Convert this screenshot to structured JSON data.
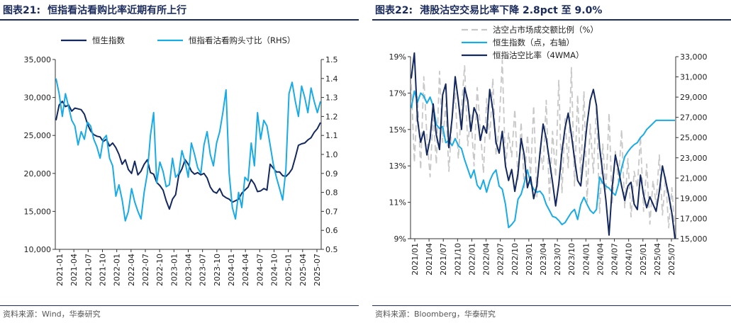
{
  "left": {
    "title_num": "图表21:",
    "title_text": "恒指看沽看购比率近期有所上行",
    "source": "资料来源：Wind，华泰研究"
  },
  "right": {
    "title_num": "图表22:",
    "title_text": "港股沽空交易比率下降 2.8pct 至 9.0%",
    "source": "资料来源：Bloomberg，华泰研究"
  },
  "colors": {
    "navy": "#13285e",
    "cyan": "#19abe6",
    "gray": "#c8c8c8"
  },
  "chart_data": [
    {
      "type": "line",
      "x_ticks": [
        "2021-01",
        "2021-04",
        "2021-07",
        "2021-10",
        "2022-01",
        "2022-04",
        "2022-07",
        "2022-10",
        "2023-01",
        "2023-04",
        "2023-07",
        "2023-10",
        "2024-01",
        "2024-04",
        "2024-07",
        "2024-10",
        "2025-01",
        "2025-04",
        "2025-07"
      ],
      "y_left": {
        "range": [
          10000,
          35000
        ],
        "ticks": [
          "10,000",
          "15,000",
          "20,000",
          "25,000",
          "30,000",
          "35,000"
        ]
      },
      "y_right": {
        "range": [
          0.5,
          1.5
        ],
        "ticks": [
          "0.5",
          "0.6",
          "0.7",
          "0.8",
          "0.9",
          "1.0",
          "1.1",
          "1.2",
          "1.3",
          "1.4",
          "1.5"
        ]
      },
      "series": [
        {
          "name": "恒生指数",
          "axis": "left",
          "color": "#13285e",
          "values": [
            27000,
            29000,
            29500,
            28800,
            29000,
            28200,
            28600,
            28500,
            28400,
            27800,
            26500,
            25600,
            25100,
            24900,
            24800,
            24200,
            24500,
            23600,
            24000,
            23400,
            22500,
            21200,
            21800,
            20500,
            20000,
            21600,
            19800,
            20300,
            21200,
            21800,
            20100,
            19900,
            18800,
            18400,
            17800,
            16400,
            15300,
            16600,
            17200,
            19800,
            20600,
            21800,
            21200,
            20300,
            19900,
            20100,
            19800,
            20000,
            19400,
            18200,
            17600,
            17400,
            18000,
            17100,
            16800,
            16600,
            16200,
            16400,
            16600,
            17400,
            17800,
            18200,
            19200,
            18600,
            17600,
            17700,
            18000,
            17800,
            21200,
            20700,
            20200,
            20200,
            19700,
            19600,
            20000,
            20600,
            22100,
            23700,
            23900,
            24000,
            24400,
            24700,
            25400,
            25900,
            26700
          ]
        },
        {
          "name": "恒指看沽看购头寸比（RHS）",
          "axis": "right",
          "color": "#19abe6",
          "values": [
            1.4,
            1.32,
            1.2,
            1.32,
            1.25,
            1.18,
            1.15,
            1.05,
            1.12,
            1.08,
            1.17,
            1.15,
            1.08,
            1.04,
            0.98,
            1.08,
            1.1,
            0.98,
            0.94,
            0.78,
            0.84,
            0.76,
            0.65,
            0.7,
            0.82,
            0.75,
            0.7,
            0.66,
            0.8,
            0.9,
            1.1,
            1.22,
            0.85,
            0.96,
            0.91,
            0.83,
            0.84,
            0.98,
            0.88,
            0.9,
            1.02,
            0.96,
            0.88,
            1.06,
            1.0,
            0.93,
            0.9,
            1.05,
            1.12,
            1.0,
            0.94,
            1.06,
            1.12,
            1.22,
            1.34,
            0.9,
            0.72,
            0.66,
            0.8,
            0.72,
            0.88,
            0.86,
            1.06,
            0.94,
            1.22,
            1.08,
            1.18,
            1.15,
            1.05,
            0.95,
            0.88,
            0.82,
            0.76,
            0.92,
            1.32,
            1.38,
            1.28,
            1.2,
            1.36,
            1.3,
            1.22,
            1.35,
            1.28,
            1.22,
            1.28
          ]
        }
      ]
    },
    {
      "type": "line",
      "x_ticks": [
        "2021/01",
        "2021/04",
        "2021/07",
        "2021/10",
        "2022/01",
        "2022/04",
        "2022/07",
        "2022/10",
        "2023/01",
        "2023/04",
        "2023/07",
        "2023/10",
        "2024/01",
        "2024/04",
        "2024/07",
        "2024/10",
        "2025/01",
        "2025/04",
        "2025/07"
      ],
      "y_left": {
        "range": [
          9,
          19
        ],
        "ticks": [
          "9%",
          "11%",
          "13%",
          "15%",
          "17%",
          "19%"
        ]
      },
      "y_right": {
        "range": [
          15000,
          33000
        ],
        "ticks": [
          "15,000",
          "17,000",
          "19,000",
          "21,000",
          "23,000",
          "25,000",
          "27,000",
          "29,000",
          "31,000",
          "33,000"
        ]
      },
      "series": [
        {
          "name": "沽空占市场成交额比例（%）",
          "axis": "left",
          "color": "#c8c8c8",
          "dash": true,
          "values": [
            17.5,
            13.2,
            16.8,
            12.8,
            17.9,
            14.6,
            12.4,
            15.9,
            13.1,
            18.2,
            14.3,
            16.4,
            12.7,
            15.6,
            17.0,
            13.4,
            16.2,
            18.5,
            14.1,
            15.8,
            13.0,
            17.3,
            15.1,
            12.6,
            16.7,
            14.4,
            17.8,
            13.6,
            15.2,
            18.8,
            12.9,
            14.8,
            13.5,
            16.1,
            12.2,
            15.4,
            11.8,
            14.7,
            12.5,
            16.3,
            11.3,
            14.0,
            12.8,
            16.6,
            11.1,
            14.9,
            12.4,
            17.7,
            11.5,
            15.6,
            12.9,
            18.4,
            11.9,
            16.9,
            12.3,
            17.1,
            11.0,
            15.3,
            12.6,
            16.4,
            10.4,
            14.2,
            11.6,
            15.9,
            10.9,
            13.8,
            12.1,
            15.0,
            10.7,
            13.4,
            10.2,
            12.7,
            11.8,
            14.6,
            10.5,
            13.1,
            9.8,
            12.2,
            10.9,
            13.6,
            10.3,
            12.4,
            9.6,
            11.8,
            9.3
          ]
        },
        {
          "name": "恒生指数（点，右轴）",
          "axis": "right",
          "color": "#19abe6",
          "values": [
            27900,
            29600,
            28500,
            29400,
            29100,
            28400,
            29000,
            28100,
            26300,
            25900,
            26100,
            24500,
            24700,
            24200,
            24900,
            24200,
            23900,
            22800,
            21900,
            21000,
            21800,
            20300,
            19900,
            20800,
            19600,
            20700,
            21400,
            21800,
            20200,
            19900,
            18400,
            16100,
            16400,
            16800,
            18900,
            19400,
            20500,
            21800,
            20500,
            19900,
            19600,
            19700,
            19300,
            18400,
            17800,
            17200,
            17100,
            16800,
            16400,
            16600,
            17100,
            17600,
            17900,
            16900,
            18400,
            19100,
            18400,
            17800,
            17500,
            17900,
            21100,
            20500,
            20200,
            20000,
            19600,
            19300,
            20400,
            22000,
            23100,
            23600,
            24000,
            24300,
            24500,
            25000,
            25300,
            25800,
            26100,
            26400,
            26700,
            26700,
            26700,
            26700,
            26700,
            26700,
            26700
          ]
        },
        {
          "name": "恒指沽空比率（4WMA）",
          "axis": "left",
          "color": "#13285e",
          "values": [
            17.8,
            19.2,
            15.5,
            14.3,
            14.9,
            13.6,
            14.5,
            16.4,
            14.7,
            13.9,
            16.9,
            17.5,
            14.0,
            15.6,
            17.9,
            16.6,
            15.0,
            17.3,
            16.6,
            14.9,
            16.2,
            15.8,
            14.4,
            15.2,
            14.8,
            17.2,
            16.1,
            14.3,
            13.7,
            14.9,
            13.0,
            12.2,
            12.8,
            11.6,
            12.6,
            14.5,
            13.6,
            11.8,
            12.4,
            11.2,
            11.9,
            13.7,
            15.3,
            14.5,
            13.3,
            12.1,
            10.8,
            12.0,
            13.8,
            15.1,
            15.9,
            14.7,
            13.4,
            12.2,
            11.9,
            13.6,
            15.3,
            16.6,
            17.2,
            16.3,
            14.0,
            12.6,
            11.1,
            9.2,
            11.8,
            13.6,
            12.8,
            11.9,
            11.1,
            11.9,
            12.1,
            10.9,
            10.6,
            12.5,
            11.4,
            10.7,
            11.3,
            10.9,
            10.5,
            11.6,
            13.0,
            12.2,
            11.4,
            10.4,
            9.0
          ]
        }
      ]
    }
  ]
}
